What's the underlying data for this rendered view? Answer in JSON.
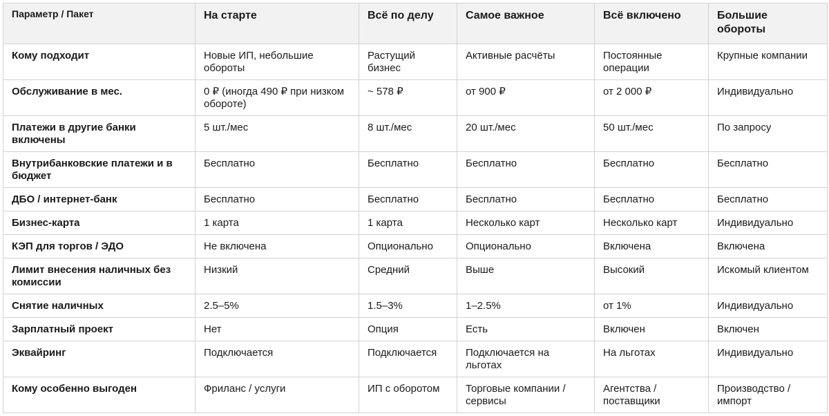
{
  "header": {
    "corner": "Параметр / Пакет",
    "packages": [
      "На старте",
      "Всё по делу",
      "Самое важное",
      "Всё включено",
      "Большие обороты"
    ]
  },
  "rows": [
    {
      "param": "Кому подходит",
      "values": [
        "Новые ИП, небольшие обороты",
        "Растущий бизнес",
        "Активные расчёты",
        "Постоянные операции",
        "Крупные компании"
      ]
    },
    {
      "param": "Обслуживание в мес.",
      "values": [
        "0 ₽ (иногда 490 ₽ при низком обороте)",
        "~ 578 ₽",
        "от 900 ₽",
        "от 2 000 ₽",
        "Индивидуально"
      ]
    },
    {
      "param": "Платежи в другие банки включены",
      "values": [
        "5 шт./мес",
        "8 шт./мес",
        "20 шт./мес",
        "50 шт./мес",
        "По запросу"
      ]
    },
    {
      "param": "Внутрибанковские платежи и в бюджет",
      "values": [
        "Бесплатно",
        "Бесплатно",
        "Бесплатно",
        "Бесплатно",
        "Бесплатно"
      ]
    },
    {
      "param": "ДБО / интернет-банк",
      "values": [
        "Бесплатно",
        "Бесплатно",
        "Бесплатно",
        "Бесплатно",
        "Бесплатно"
      ]
    },
    {
      "param": "Бизнес-карта",
      "values": [
        "1 карта",
        "1 карта",
        "Несколько карт",
        "Несколько карт",
        "Индивидуально"
      ]
    },
    {
      "param": "КЭП для торгов / ЭДО",
      "values": [
        "Не включена",
        "Опционально",
        "Опционально",
        "Включена",
        "Включена"
      ]
    },
    {
      "param": "Лимит внесения наличных без комиссии",
      "values": [
        "Низкий",
        "Средний",
        "Выше",
        "Высокий",
        "Искомый клиентом"
      ]
    },
    {
      "param": "Снятие наличных",
      "values": [
        "2.5–5%",
        "1.5–3%",
        "1–2.5%",
        "от 1%",
        "Индивидуально"
      ]
    },
    {
      "param": "Зарплатный проект",
      "values": [
        "Нет",
        "Опция",
        "Есть",
        "Включен",
        "Включен"
      ]
    },
    {
      "param": "Эквайринг",
      "values": [
        "Подключается",
        "Подключается",
        "Подключается на льготах",
        "На льготах",
        "Индивидуально"
      ]
    },
    {
      "param": "Кому особенно выгоден",
      "values": [
        "Фриланс / услуги",
        "ИП с оборотом",
        "Торговые компании / сервисы",
        "Агентства / поставщики",
        "Производство / импорт"
      ]
    }
  ]
}
